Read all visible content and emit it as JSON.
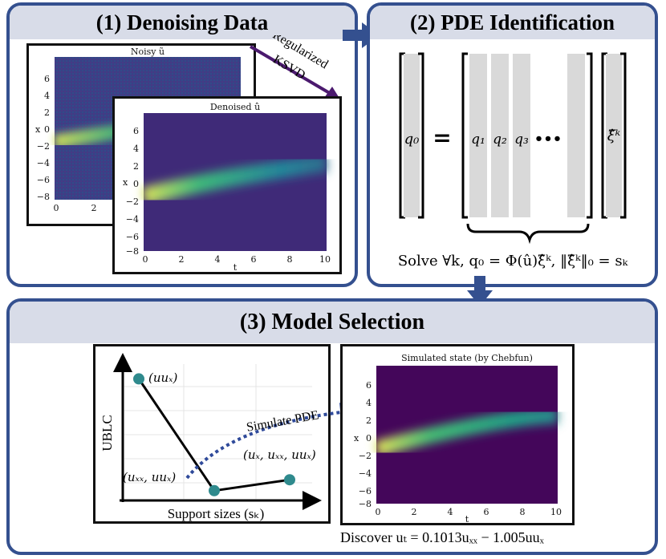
{
  "panels": {
    "denoising": {
      "title": "(1) Denoising Data",
      "noisy_title": "Noisy ũ",
      "denoised_title": "Denoised û",
      "arrow_label_line1": "Regularized",
      "arrow_label_line2": "KSVD",
      "y_label": "x",
      "x_label": "t",
      "y_ticks": [
        "6",
        "4",
        "2",
        "0",
        "−2",
        "−4",
        "−6",
        "−8"
      ],
      "x_ticks": [
        "0",
        "2",
        "4",
        "6",
        "8",
        "10"
      ],
      "noisy_x_ticks": [
        "0",
        "2"
      ]
    },
    "pde": {
      "title": "(2) PDE Identification",
      "q0": "q₀",
      "equals": "=",
      "q1": "q₁",
      "q2": "q₂",
      "q3": "q₃",
      "dots": "•••",
      "xi": "ξ̂ᵏ",
      "solve_text": "Solve ∀k, q₀ = Φ(û)ξ̂ᵏ, ‖ξ̂ᵏ‖₀ = sₖ"
    },
    "model": {
      "title": "(3) Model Selection",
      "y_axis_label": "UBLC",
      "x_axis_label": "Support sizes (sₖ)",
      "point1_label": "(uuₓ)",
      "point2_label": "(uₓₓ, uuₓ)",
      "point3_label": "(uₓ, uₓₓ, uuₓ)",
      "simulate_label": "Simulate PDE",
      "sim_title": "Simulated state (by Chebfun)",
      "sim_y_label": "x",
      "sim_x_label": "t",
      "sim_y_ticks": [
        "6",
        "4",
        "2",
        "0",
        "−2",
        "−4",
        "−6",
        "−8"
      ],
      "sim_x_ticks": [
        "0",
        "2",
        "4",
        "6",
        "8",
        "10"
      ],
      "discover_text": "Discover uₜ = 0.1013uₓₓ − 1.005uuₓ"
    }
  },
  "colors": {
    "panel_border": "#34508f",
    "panel_header": "#d8dce8",
    "flow_arrow": "#34508f",
    "ksvd_arrow": "#4b1a6e",
    "point": "#2f8a8d",
    "dotted_arrow": "#2f4a9a",
    "matrix_column": "#d9d9d9"
  },
  "ublc_points": [
    {
      "support": 1,
      "ublc": 0.88
    },
    {
      "support": 2,
      "ublc": 0.06
    },
    {
      "support": 3,
      "ublc": 0.14
    }
  ]
}
